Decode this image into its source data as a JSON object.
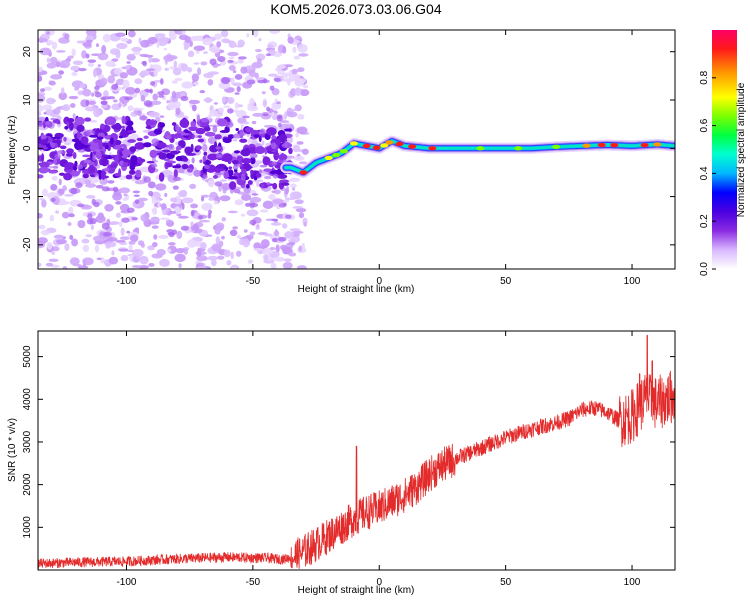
{
  "figure_title": "KOM5.2026.073.03.06.G04",
  "colors": {
    "snr_line": "#e32b2b",
    "axis": "#000000",
    "background": "#ffffff"
  },
  "chart_data": [
    {
      "type": "heatmap",
      "xlabel": "Height of straight line (km)",
      "ylabel": "Frequency (Hz)",
      "xlim": [
        -135,
        117
      ],
      "ylim": [
        -25,
        24.5
      ],
      "xticks": [
        -100,
        -50,
        0,
        50,
        100
      ],
      "xtick_labels": [
        "-100",
        "-50",
        "0",
        "50",
        "100"
      ],
      "yticks": [
        -20,
        -10,
        0,
        10,
        20
      ],
      "ytick_labels": [
        "-20",
        "-10",
        "0",
        "10",
        "20"
      ],
      "colorbar": {
        "label": "Normalized spectral amplitude",
        "range": [
          0,
          1
        ],
        "ticks": [
          0.0,
          0.2,
          0.4,
          0.6,
          0.8
        ],
        "tick_labels": [
          "0.0",
          "0.2",
          "0.4",
          "0.6",
          "0.8"
        ]
      },
      "ridge": {
        "description": "frequency of dominant signal vs height",
        "x": [
          -35,
          -30,
          -25,
          -20,
          -15,
          -10,
          -5,
          0,
          5,
          10,
          20,
          30,
          40,
          50,
          60,
          70,
          80,
          90,
          100,
          110,
          117
        ],
        "y": [
          -4,
          -5,
          -3,
          -2,
          -1,
          1,
          0.5,
          0,
          1.5,
          0.5,
          0,
          0,
          0,
          0,
          0,
          0.3,
          0.5,
          0.7,
          0.5,
          0.8,
          0.5
        ]
      }
    },
    {
      "type": "line",
      "xlabel": "Height of straight line (km)",
      "ylabel": "SNR (10 * v/v)",
      "xlim": [
        -135,
        117
      ],
      "ylim": [
        0,
        5600
      ],
      "xticks": [
        -100,
        -50,
        0,
        50,
        100
      ],
      "xtick_labels": [
        "-100",
        "-50",
        "0",
        "50",
        "100"
      ],
      "yticks": [
        1000,
        2000,
        3000,
        4000,
        5000
      ],
      "ytick_labels": [
        "1000",
        "2000",
        "3000",
        "4000",
        "5000"
      ],
      "series": [
        {
          "name": "SNR trend",
          "x": [
            -135,
            -120,
            -100,
            -80,
            -60,
            -45,
            -38,
            -32,
            -25,
            -20,
            -15,
            -10,
            -5,
            0,
            5,
            10,
            15,
            20,
            25,
            30,
            40,
            50,
            60,
            70,
            75,
            80,
            85,
            90,
            95,
            100,
            105,
            110,
            117
          ],
          "y": [
            150,
            180,
            200,
            260,
            300,
            280,
            250,
            350,
            600,
            800,
            1000,
            1200,
            1350,
            1450,
            1600,
            1750,
            1950,
            2250,
            2450,
            2600,
            2850,
            3100,
            3300,
            3450,
            3550,
            3750,
            3800,
            3700,
            3500,
            3600,
            4000,
            3900,
            4100
          ]
        }
      ],
      "spikes": [
        {
          "x": -9,
          "y": 2900
        },
        {
          "x": 106,
          "y": 5500
        },
        {
          "x": 103,
          "y": 4600
        },
        {
          "x": 108,
          "y": 4900
        }
      ]
    }
  ]
}
